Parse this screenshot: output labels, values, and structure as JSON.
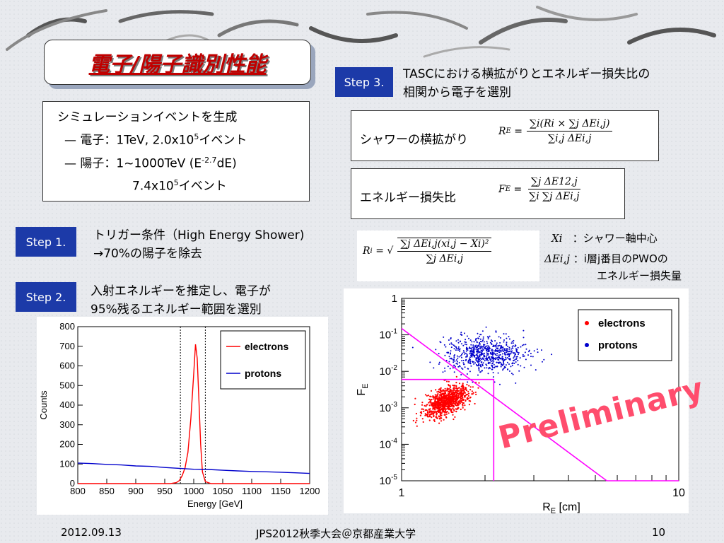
{
  "title": "電子/陽子識別性能",
  "simulation": {
    "line1": "シミュレーションイベントを生成",
    "line2_pre": "— 電子：1TeV, 2.0x10",
    "line2_sup": "5",
    "line2_post": "イベント",
    "line3_pre": "— 陽子：1~1000TeV (E",
    "line3_sup": "-2.7",
    "line3_post": "dE)",
    "line4_pre": "7.4x10",
    "line4_sup": "5",
    "line4_post": "イベント"
  },
  "step1": {
    "label": "Step 1.",
    "line1": "トリガー条件（High Energy Shower)",
    "line2": "→70%の陽子を除去"
  },
  "step2": {
    "label": "Step 2.",
    "line1": "入射エネルギーを推定し、電子が",
    "line2": "95%残るエネルギー範囲を選別"
  },
  "step3": {
    "label": "Step 3.",
    "line1": "TASCにおける横拡がりとエネルギー損失比の",
    "line2": "相関から電子を選別"
  },
  "eq1": {
    "label": "シャワーの横拡がり",
    "lhs": "R",
    "lhs_sub": "E",
    "num": "∑i(Ri × ∑j ΔEi,j)",
    "den": "∑i,j ΔEi,j"
  },
  "eq2": {
    "label": "エネルギー損失比",
    "lhs": "F",
    "lhs_sub": "E",
    "num": "∑j ΔE12,j",
    "den": "∑i ∑j ΔEi,j"
  },
  "eq3": {
    "lhs": "R",
    "lhs_sub": "i",
    "num": "∑j ΔEi,j(xi,j − Xi)²",
    "den": "∑j ΔEi,j"
  },
  "notes": {
    "xi_sym": "Xi",
    "xi_desc": "：シャワー軸中心",
    "dE_sym": "ΔEi,j",
    "dE_desc": "：i層j番目のPWOの",
    "dE_desc2": "エネルギー損失量"
  },
  "watermark": "Preliminary",
  "footer": {
    "date": "2012.09.13",
    "conference": "JPS2012秋季大会＠京都産業大学",
    "page": "10"
  },
  "colors": {
    "step_bg": "#1c3aa8",
    "title_red": "#c00000",
    "electrons": "#ff0000",
    "protons": "#0000cc",
    "cut": "#ff00ff"
  },
  "chart_data": [
    {
      "type": "line",
      "xlabel": "Energy [GeV]",
      "ylabel": "Counts",
      "xlim": [
        800,
        1200
      ],
      "ylim": [
        0,
        800
      ],
      "x_ticks": [
        "800",
        "850",
        "900",
        "950",
        "1000",
        "1050",
        "1100",
        "1150",
        "1200"
      ],
      "y_ticks": [
        "0",
        "100",
        "200",
        "300",
        "400",
        "500",
        "600",
        "700",
        "800"
      ],
      "legend": "top-right",
      "cut_lines": [
        977,
        1020
      ],
      "series": [
        {
          "name": "electrons",
          "color": "#ff0000",
          "x": [
            800,
            950,
            960,
            970,
            975,
            980,
            985,
            990,
            995,
            1000,
            1003,
            1006,
            1009,
            1012,
            1015,
            1020,
            1030,
            1200
          ],
          "y": [
            0,
            0,
            0,
            5,
            15,
            40,
            80,
            160,
            330,
            560,
            710,
            640,
            420,
            200,
            60,
            10,
            0,
            0
          ]
        },
        {
          "name": "protons",
          "color": "#0000cc",
          "x": [
            800,
            825,
            850,
            875,
            900,
            925,
            950,
            975,
            1000,
            1025,
            1050,
            1075,
            1100,
            1125,
            1150,
            1175,
            1200
          ],
          "y": [
            105,
            102,
            98,
            95,
            90,
            88,
            82,
            78,
            73,
            72,
            68,
            65,
            62,
            60,
            58,
            55,
            52
          ]
        }
      ]
    },
    {
      "type": "scatter",
      "xlabel": "R_E [cm]",
      "ylabel": "F_E",
      "log_x": true,
      "log_y": true,
      "xlim": [
        1,
        10
      ],
      "ylim": [
        1e-05,
        1
      ],
      "x_ticks": [
        "1",
        "10"
      ],
      "y_ticks": [
        "1",
        "10^-1",
        "10^-2",
        "10^-3",
        "10^-4",
        "10^-5"
      ],
      "legend": "top-right",
      "series": [
        {
          "name": "electrons",
          "color": "#ff0000",
          "center": [
            1.45,
            0.0015
          ]
        },
        {
          "name": "protons",
          "color": "#0000cc",
          "center": [
            2.0,
            0.03
          ]
        }
      ],
      "cut": {
        "fe_max": 0.006,
        "re_max": 2.15,
        "diagonal": [
          [
            1,
            0.15
          ],
          [
            5.5,
            1e-05
          ]
        ]
      }
    }
  ]
}
